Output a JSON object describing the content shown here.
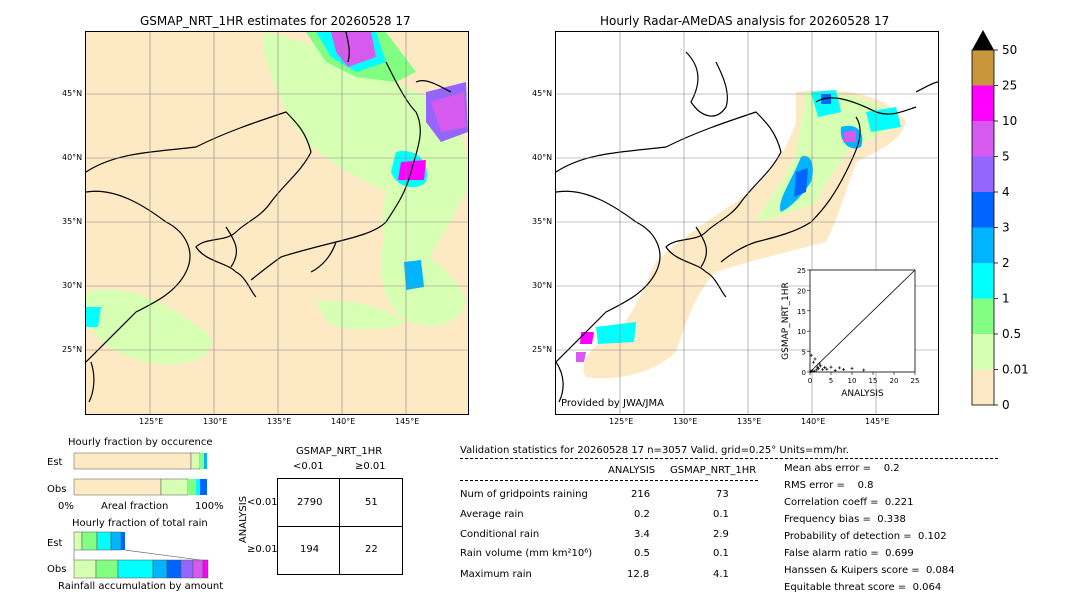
{
  "left_map": {
    "title": "GSMAP_NRT_1HR estimates for 20260528 17",
    "lat_labels": [
      "45°N",
      "40°N",
      "35°N",
      "30°N",
      "25°N"
    ],
    "lon_labels": [
      "125°E",
      "130°E",
      "135°E",
      "140°E",
      "145°E"
    ]
  },
  "right_map": {
    "title": "Hourly Radar-AMeDAS analysis for 20260528 17",
    "lat_labels": [
      "45°N",
      "40°N",
      "35°N",
      "30°N",
      "25°N"
    ],
    "lon_labels": [
      "125°E",
      "130°E",
      "135°E",
      "140°E",
      "145°E"
    ],
    "provider": "Provided by JWA/JMA"
  },
  "colorbar": {
    "labels": [
      "50",
      "25",
      "10",
      "5",
      "4",
      "3",
      "2",
      "1",
      "0.5",
      "0.01",
      "0"
    ],
    "colors": [
      "#c8963c",
      "#ff00ff",
      "#d75aef",
      "#9664ff",
      "#0064ff",
      "#00b4ff",
      "#00ffff",
      "#82ff82",
      "#d7ffb4",
      "#fde9c4"
    ],
    "over_color": "#000000"
  },
  "fraction_occurrence": {
    "title": "Hourly fraction by occurence",
    "row_labels": [
      "Est",
      "Obs"
    ],
    "axis_left": "0%",
    "axis_mid": "Areal fraction",
    "axis_right": "100%"
  },
  "fraction_total": {
    "title": "Hourly fraction of total rain",
    "row_labels": [
      "Est",
      "Obs"
    ],
    "footer": "Rainfall accumulation by amount"
  },
  "contingency": {
    "header": "GSMAP_NRT_1HR",
    "col_labels": [
      "<0.01",
      "≥0.01"
    ],
    "row_axis": "ANALYSIS",
    "row_labels": [
      "<0.01",
      "≥0.01"
    ],
    "cells": [
      [
        "2790",
        "51"
      ],
      [
        "194",
        "22"
      ]
    ]
  },
  "validation": {
    "header": "Validation statistics for 20260528 17  n=3057 Valid. grid=0.25° Units=mm/hr.",
    "col_headers": [
      "ANALYSIS",
      "GSMAP_NRT_1HR"
    ],
    "rows": [
      {
        "label": "Num of gridpoints raining",
        "a": "216",
        "g": "73"
      },
      {
        "label": "Average rain",
        "a": "0.2",
        "g": "0.1"
      },
      {
        "label": "Conditional rain",
        "a": "3.4",
        "g": "2.9"
      },
      {
        "label": "Rain volume (mm km²10⁶)",
        "a": "0.5",
        "g": "0.1"
      },
      {
        "label": "Maximum rain",
        "a": "12.8",
        "g": "4.1"
      }
    ],
    "scores": [
      "Mean abs error =    0.2",
      "RMS error =    0.8",
      "Correlation coeff =  0.221",
      "Frequency bias =  0.338",
      "Probability of detection =  0.102",
      "False alarm ratio =  0.699",
      "Hanssen & Kuipers score =  0.084",
      "Equitable threat score =  0.064"
    ]
  },
  "chart_data": {
    "type": "scatter",
    "xlabel": "ANALYSIS",
    "ylabel": "GSMAP_NRT_1HR",
    "xlim": [
      0,
      25
    ],
    "ylim": [
      0,
      25
    ],
    "xticks": [
      "0",
      "5",
      "10",
      "15",
      "20",
      "25"
    ],
    "yticks": [
      "0",
      "5",
      "10",
      "15",
      "20",
      "25"
    ],
    "points": [
      [
        0.2,
        0.1
      ],
      [
        0.5,
        0.3
      ],
      [
        1,
        0.2
      ],
      [
        1.5,
        0.5
      ],
      [
        2,
        0.8
      ],
      [
        2.5,
        1.5
      ],
      [
        3,
        0.6
      ],
      [
        0.8,
        2.4
      ],
      [
        1.2,
        3.2
      ],
      [
        3.5,
        1.1
      ],
      [
        4,
        0.7
      ],
      [
        5,
        1.2
      ],
      [
        6,
        0.4
      ],
      [
        7,
        1.0
      ],
      [
        8,
        0.6
      ],
      [
        10,
        0.9
      ],
      [
        12.8,
        0.5
      ],
      [
        0.3,
        4.1
      ],
      [
        2.2,
        2.0
      ],
      [
        1.8,
        1.2
      ]
    ]
  }
}
